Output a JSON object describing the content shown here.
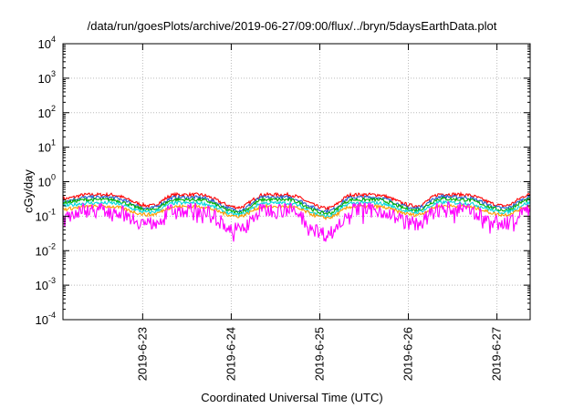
{
  "chart_data": {
    "type": "line",
    "title": "/data/run/goesPlots/archive/2019-06-27/09:00/flux/../bryn/5daysEarthData.plot",
    "xlabel": "Coordinated Universal Time (UTC)",
    "ylabel": "cGy/day",
    "yscale": "log",
    "ylim": [
      0.0001,
      10000
    ],
    "xlim": [
      "2019-06-22T02:24",
      "2019-06-27T09:00"
    ],
    "y_ticks": [
      {
        "base": "10",
        "exp": "-4"
      },
      {
        "base": "10",
        "exp": "-3"
      },
      {
        "base": "10",
        "exp": "-2"
      },
      {
        "base": "10",
        "exp": "-1"
      },
      {
        "base": "10",
        "exp": "0"
      },
      {
        "base": "10",
        "exp": "1"
      },
      {
        "base": "10",
        "exp": "2"
      },
      {
        "base": "10",
        "exp": "3"
      },
      {
        "base": "10",
        "exp": "4"
      }
    ],
    "x_ticks": [
      "2019-6-23",
      "2019-6-24",
      "2019-6-25",
      "2019-6-26",
      "2019-6-27"
    ],
    "grid": true,
    "legend": "none",
    "colors": {
      "red": "#ff0000",
      "green": "#00b000",
      "blue": "#1f5fd0",
      "cyan": "#00d8e0",
      "orange": "#ff9a00",
      "magenta": "#ff00ff",
      "grid": "#bbbbbb"
    },
    "series": [
      {
        "color": "red",
        "x": [
          "2019-06-22T02:24",
          "2019-06-22T09:00",
          "2019-06-22T15:00",
          "2019-06-23T02:00",
          "2019-06-23T09:00",
          "2019-06-23T15:00",
          "2019-06-24T02:00",
          "2019-06-24T09:00",
          "2019-06-24T15:00",
          "2019-06-25T02:00",
          "2019-06-25T09:00",
          "2019-06-25T15:00",
          "2019-06-26T02:00",
          "2019-06-26T09:00",
          "2019-06-26T15:00",
          "2019-06-27T02:00",
          "2019-06-27T09:00"
        ],
        "values": [
          0.32,
          0.42,
          0.42,
          0.2,
          0.42,
          0.42,
          0.18,
          0.42,
          0.42,
          0.17,
          0.42,
          0.42,
          0.2,
          0.44,
          0.42,
          0.2,
          0.42
        ]
      },
      {
        "color": "blue",
        "x": [
          "2019-06-22T02:24",
          "2019-06-22T09:00",
          "2019-06-22T15:00",
          "2019-06-23T02:00",
          "2019-06-23T09:00",
          "2019-06-23T15:00",
          "2019-06-24T02:00",
          "2019-06-24T09:00",
          "2019-06-24T15:00",
          "2019-06-25T02:00",
          "2019-06-25T09:00",
          "2019-06-25T15:00",
          "2019-06-26T02:00",
          "2019-06-26T09:00",
          "2019-06-26T15:00",
          "2019-06-27T02:00",
          "2019-06-27T09:00"
        ],
        "values": [
          0.28,
          0.35,
          0.35,
          0.17,
          0.35,
          0.35,
          0.15,
          0.35,
          0.35,
          0.14,
          0.35,
          0.35,
          0.17,
          0.37,
          0.35,
          0.17,
          0.35
        ]
      },
      {
        "color": "green",
        "x": [
          "2019-06-22T02:24",
          "2019-06-22T09:00",
          "2019-06-22T15:00",
          "2019-06-23T02:00",
          "2019-06-23T09:00",
          "2019-06-23T15:00",
          "2019-06-24T02:00",
          "2019-06-24T09:00",
          "2019-06-24T15:00",
          "2019-06-25T02:00",
          "2019-06-25T09:00",
          "2019-06-25T15:00",
          "2019-06-26T02:00",
          "2019-06-26T09:00",
          "2019-06-26T15:00",
          "2019-06-27T02:00",
          "2019-06-27T09:00"
        ],
        "values": [
          0.25,
          0.3,
          0.3,
          0.15,
          0.3,
          0.3,
          0.13,
          0.3,
          0.3,
          0.12,
          0.3,
          0.3,
          0.15,
          0.32,
          0.3,
          0.15,
          0.3
        ]
      },
      {
        "color": "cyan",
        "x": [
          "2019-06-22T02:24",
          "2019-06-22T09:00",
          "2019-06-22T15:00",
          "2019-06-23T02:00",
          "2019-06-23T09:00",
          "2019-06-23T15:00",
          "2019-06-24T02:00",
          "2019-06-24T09:00",
          "2019-06-24T15:00",
          "2019-06-25T02:00",
          "2019-06-25T09:00",
          "2019-06-25T15:00",
          "2019-06-26T02:00",
          "2019-06-26T09:00",
          "2019-06-26T15:00",
          "2019-06-27T02:00",
          "2019-06-27T09:00"
        ],
        "values": [
          0.2,
          0.24,
          0.24,
          0.13,
          0.24,
          0.24,
          0.11,
          0.24,
          0.24,
          0.1,
          0.24,
          0.24,
          0.13,
          0.25,
          0.24,
          0.13,
          0.24
        ]
      },
      {
        "color": "orange",
        "x": [
          "2019-06-22T02:24",
          "2019-06-22T09:00",
          "2019-06-22T15:00",
          "2019-06-23T02:00",
          "2019-06-23T09:00",
          "2019-06-23T15:00",
          "2019-06-24T02:00",
          "2019-06-24T09:00",
          "2019-06-24T15:00",
          "2019-06-25T02:00",
          "2019-06-25T09:00",
          "2019-06-25T15:00",
          "2019-06-26T02:00",
          "2019-06-26T09:00",
          "2019-06-26T15:00",
          "2019-06-27T02:00",
          "2019-06-27T09:00"
        ],
        "values": [
          0.16,
          0.19,
          0.19,
          0.11,
          0.19,
          0.19,
          0.1,
          0.19,
          0.19,
          0.09,
          0.19,
          0.19,
          0.11,
          0.2,
          0.19,
          0.11,
          0.19
        ]
      },
      {
        "color": "magenta",
        "x": [
          "2019-06-22T02:24",
          "2019-06-22T09:00",
          "2019-06-22T15:00",
          "2019-06-23T02:00",
          "2019-06-23T09:00",
          "2019-06-23T15:00",
          "2019-06-24T02:00",
          "2019-06-24T09:00",
          "2019-06-24T15:00",
          "2019-06-25T02:00",
          "2019-06-25T09:00",
          "2019-06-25T15:00",
          "2019-06-26T02:00",
          "2019-06-26T09:00",
          "2019-06-26T15:00",
          "2019-06-27T02:00",
          "2019-06-27T09:00"
        ],
        "values": [
          0.1,
          0.15,
          0.15,
          0.06,
          0.15,
          0.15,
          0.04,
          0.15,
          0.15,
          0.03,
          0.15,
          0.15,
          0.06,
          0.16,
          0.15,
          0.06,
          0.15
        ]
      }
    ]
  }
}
